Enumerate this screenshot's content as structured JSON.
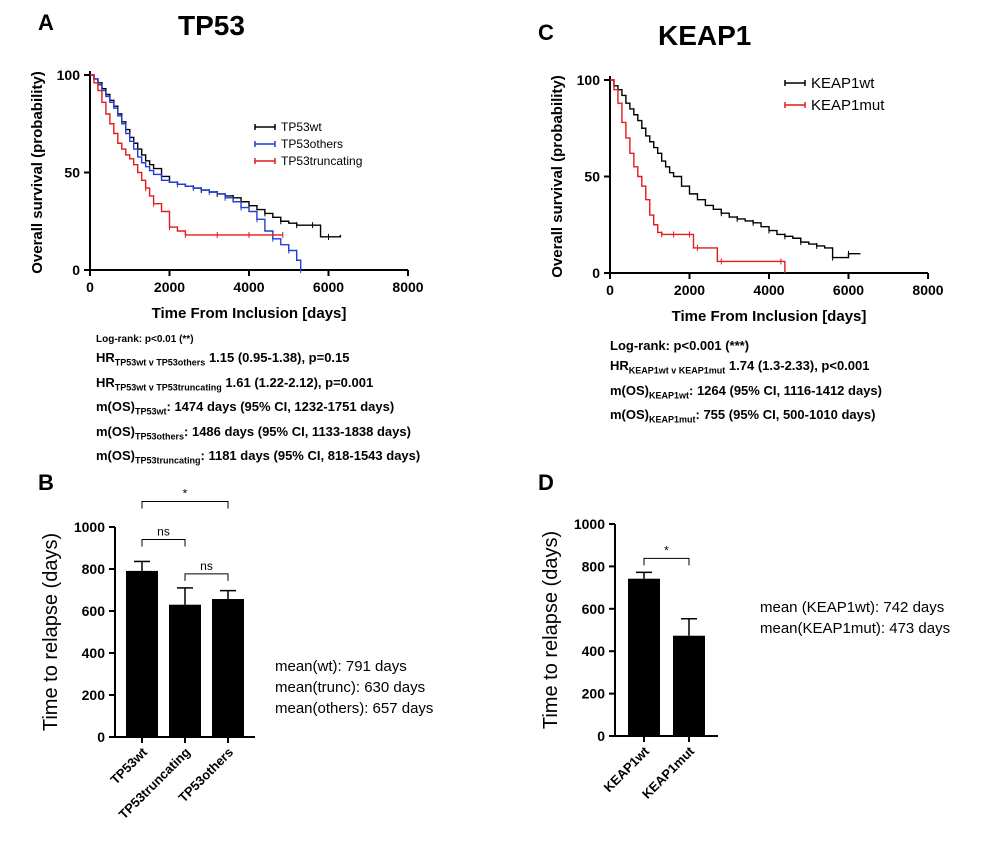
{
  "panels": {
    "A": {
      "letter": "A",
      "title": "TP53"
    },
    "B": {
      "letter": "B"
    },
    "C": {
      "letter": "C",
      "title": "KEAP1"
    },
    "D": {
      "letter": "D"
    }
  },
  "stats_A": {
    "logrank": "Log-rank: p<0.01 (**)",
    "hr1_main": "HR",
    "hr1_sub": "TP53wt v TP53others",
    "hr1_rest": " 1.15 (0.95-1.38), p=0.15",
    "hr2_main": "HR",
    "hr2_sub": "TP53wt v TP53truncating",
    "hr2_rest": " 1.61 (1.22-2.12), p=0.001",
    "m1_main": "m(OS)",
    "m1_sub": "TP53wt",
    "m1_rest": ": 1474 days (95% CI, 1232-1751 days)",
    "m2_main": "m(OS)",
    "m2_sub": "TP53others",
    "m2_rest": ": 1486 days (95% CI, 1133-1838 days)",
    "m3_main": "m(OS)",
    "m3_sub": "TP53truncating",
    "m3_rest": ": 1181 days (95% CI, 818-1543 days)"
  },
  "stats_C": {
    "logrank": "Log-rank: p<0.001 (***)",
    "hr_main": "HR",
    "hr_sub": "KEAP1wt v KEAP1mut",
    "hr_rest": " 1.74 (1.3-2.33), p<0.001",
    "m1_main": "m(OS)",
    "m1_sub": "KEAP1wt",
    "m1_rest": ": 1264 (95% CI, 1116-1412 days)",
    "m2_main": "m(OS)",
    "m2_sub": "KEAP1mut",
    "m2_rest": ": 755 (95% CI, 500-1010 days)"
  },
  "means_B": [
    "mean(wt): 791 days",
    "mean(trunc): 630 days",
    "mean(others): 657 days"
  ],
  "means_D": [
    "mean (KEAP1wt): 742 days",
    "mean(KEAP1mut): 473 days"
  ],
  "colors": {
    "wt": "#000000",
    "others": "#1f3fd6",
    "truncating": "#e41a1c"
  },
  "chart_data": [
    {
      "id": "A",
      "type": "line",
      "title": "TP53",
      "xlabel": "Time From Inclusion [days]",
      "ylabel": "Overall survival (probability)",
      "xlim": [
        0,
        8000
      ],
      "ylim": [
        0,
        100
      ],
      "xticks": [
        0,
        2000,
        4000,
        6000,
        8000
      ],
      "yticks": [
        0,
        50,
        100
      ],
      "legend": "top-right",
      "series": [
        {
          "name": "TP53wt",
          "color": "#000000",
          "x": [
            0,
            100,
            200,
            300,
            400,
            500,
            600,
            700,
            800,
            900,
            1000,
            1100,
            1200,
            1300,
            1400,
            1500,
            1600,
            1800,
            2000,
            2200,
            2400,
            2600,
            2800,
            3000,
            3200,
            3400,
            3600,
            3800,
            4000,
            4200,
            4400,
            4600,
            4800,
            5000,
            5200,
            5400,
            5600,
            5800,
            6000,
            6300
          ],
          "y": [
            100,
            98,
            96,
            93,
            90,
            87,
            84,
            80,
            76,
            72,
            68,
            65,
            62,
            59,
            56,
            54,
            52,
            48,
            45,
            44,
            43,
            42,
            41,
            40,
            39,
            38,
            37,
            35,
            33,
            31,
            29,
            27,
            25,
            24,
            23,
            23,
            23,
            17,
            17,
            18
          ]
        },
        {
          "name": "TP53others",
          "color": "#1f3fd6",
          "x": [
            0,
            100,
            200,
            300,
            400,
            500,
            600,
            700,
            800,
            900,
            1000,
            1100,
            1200,
            1300,
            1400,
            1500,
            1600,
            1800,
            2000,
            2200,
            2400,
            2600,
            2800,
            3000,
            3200,
            3400,
            3600,
            3800,
            4000,
            4200,
            4400,
            4600,
            4800,
            5000,
            5200,
            5300
          ],
          "y": [
            100,
            98,
            95,
            92,
            89,
            86,
            83,
            79,
            75,
            70,
            66,
            62,
            58,
            55,
            53,
            51,
            49,
            46,
            45,
            44,
            43,
            42,
            41,
            40,
            39,
            37,
            35,
            32,
            30,
            26,
            20,
            16,
            13,
            10,
            5,
            0
          ]
        },
        {
          "name": "TP53truncating",
          "color": "#e41a1c",
          "x": [
            0,
            100,
            200,
            300,
            400,
            500,
            600,
            700,
            800,
            900,
            1000,
            1100,
            1200,
            1300,
            1400,
            1500,
            1600,
            1800,
            2000,
            2200,
            2400,
            2800,
            3200,
            3600,
            4000,
            4400,
            4850
          ],
          "y": [
            100,
            96,
            92,
            86,
            80,
            75,
            70,
            65,
            62,
            59,
            57,
            54,
            50,
            46,
            42,
            38,
            34,
            30,
            22,
            20,
            18,
            18,
            18,
            18,
            18,
            18,
            18
          ]
        }
      ]
    },
    {
      "id": "B",
      "type": "bar",
      "ylabel": "Time to relapse (days)",
      "ylim": [
        0,
        1000
      ],
      "yticks": [
        0,
        200,
        400,
        600,
        800,
        1000
      ],
      "categories": [
        "TP53wt",
        "TP53truncating",
        "TP53others"
      ],
      "values": [
        791,
        630,
        657
      ],
      "errors": [
        45,
        80,
        40
      ],
      "comparisons": [
        {
          "from": 0,
          "to": 1,
          "label": "ns",
          "level": 1
        },
        {
          "from": 1,
          "to": 2,
          "label": "ns",
          "level": 0
        },
        {
          "from": 0,
          "to": 2,
          "label": "*",
          "level": 2
        }
      ]
    },
    {
      "id": "C",
      "type": "line",
      "title": "KEAP1",
      "xlabel": "Time From Inclusion [days]",
      "ylabel": "Overall survival (probability)",
      "xlim": [
        0,
        8000
      ],
      "ylim": [
        0,
        100
      ],
      "xticks": [
        0,
        2000,
        4000,
        6000,
        8000
      ],
      "yticks": [
        0,
        50,
        100
      ],
      "legend": "top-right",
      "series": [
        {
          "name": "KEAP1wt",
          "color": "#000000",
          "x": [
            0,
            100,
            200,
            300,
            400,
            500,
            600,
            700,
            800,
            900,
            1000,
            1100,
            1200,
            1300,
            1400,
            1500,
            1600,
            1800,
            2000,
            2200,
            2400,
            2600,
            2800,
            3000,
            3200,
            3400,
            3600,
            3800,
            4000,
            4200,
            4400,
            4600,
            4800,
            5000,
            5200,
            5400,
            5600,
            5800,
            6000,
            6300
          ],
          "y": [
            100,
            97,
            95,
            92,
            88,
            85,
            82,
            79,
            75,
            71,
            68,
            65,
            62,
            58,
            55,
            52,
            50,
            45,
            41,
            38,
            35,
            33,
            31,
            29,
            28,
            27,
            26,
            24,
            22,
            20,
            19,
            18,
            16,
            15,
            14,
            13,
            8,
            8,
            10,
            10
          ]
        },
        {
          "name": "KEAP1mut",
          "color": "#e41a1c",
          "x": [
            0,
            100,
            200,
            300,
            400,
            500,
            600,
            700,
            800,
            900,
            1000,
            1100,
            1200,
            1300,
            1400,
            1600,
            1800,
            2000,
            2100,
            2200,
            2700,
            2800,
            4000,
            4300,
            4400
          ],
          "y": [
            100,
            95,
            88,
            78,
            70,
            62,
            55,
            50,
            45,
            38,
            30,
            25,
            21,
            20,
            20,
            20,
            20,
            20,
            13,
            13,
            6,
            6,
            6,
            6,
            0
          ]
        }
      ]
    },
    {
      "id": "D",
      "type": "bar",
      "ylabel": "Time to relapse (days)",
      "ylim": [
        0,
        1000
      ],
      "yticks": [
        0,
        200,
        400,
        600,
        800,
        1000
      ],
      "categories": [
        "KEAP1wt",
        "KEAP1mut"
      ],
      "values": [
        742,
        473
      ],
      "errors": [
        30,
        80
      ],
      "comparisons": [
        {
          "from": 0,
          "to": 1,
          "label": "*",
          "level": 0
        }
      ]
    }
  ]
}
